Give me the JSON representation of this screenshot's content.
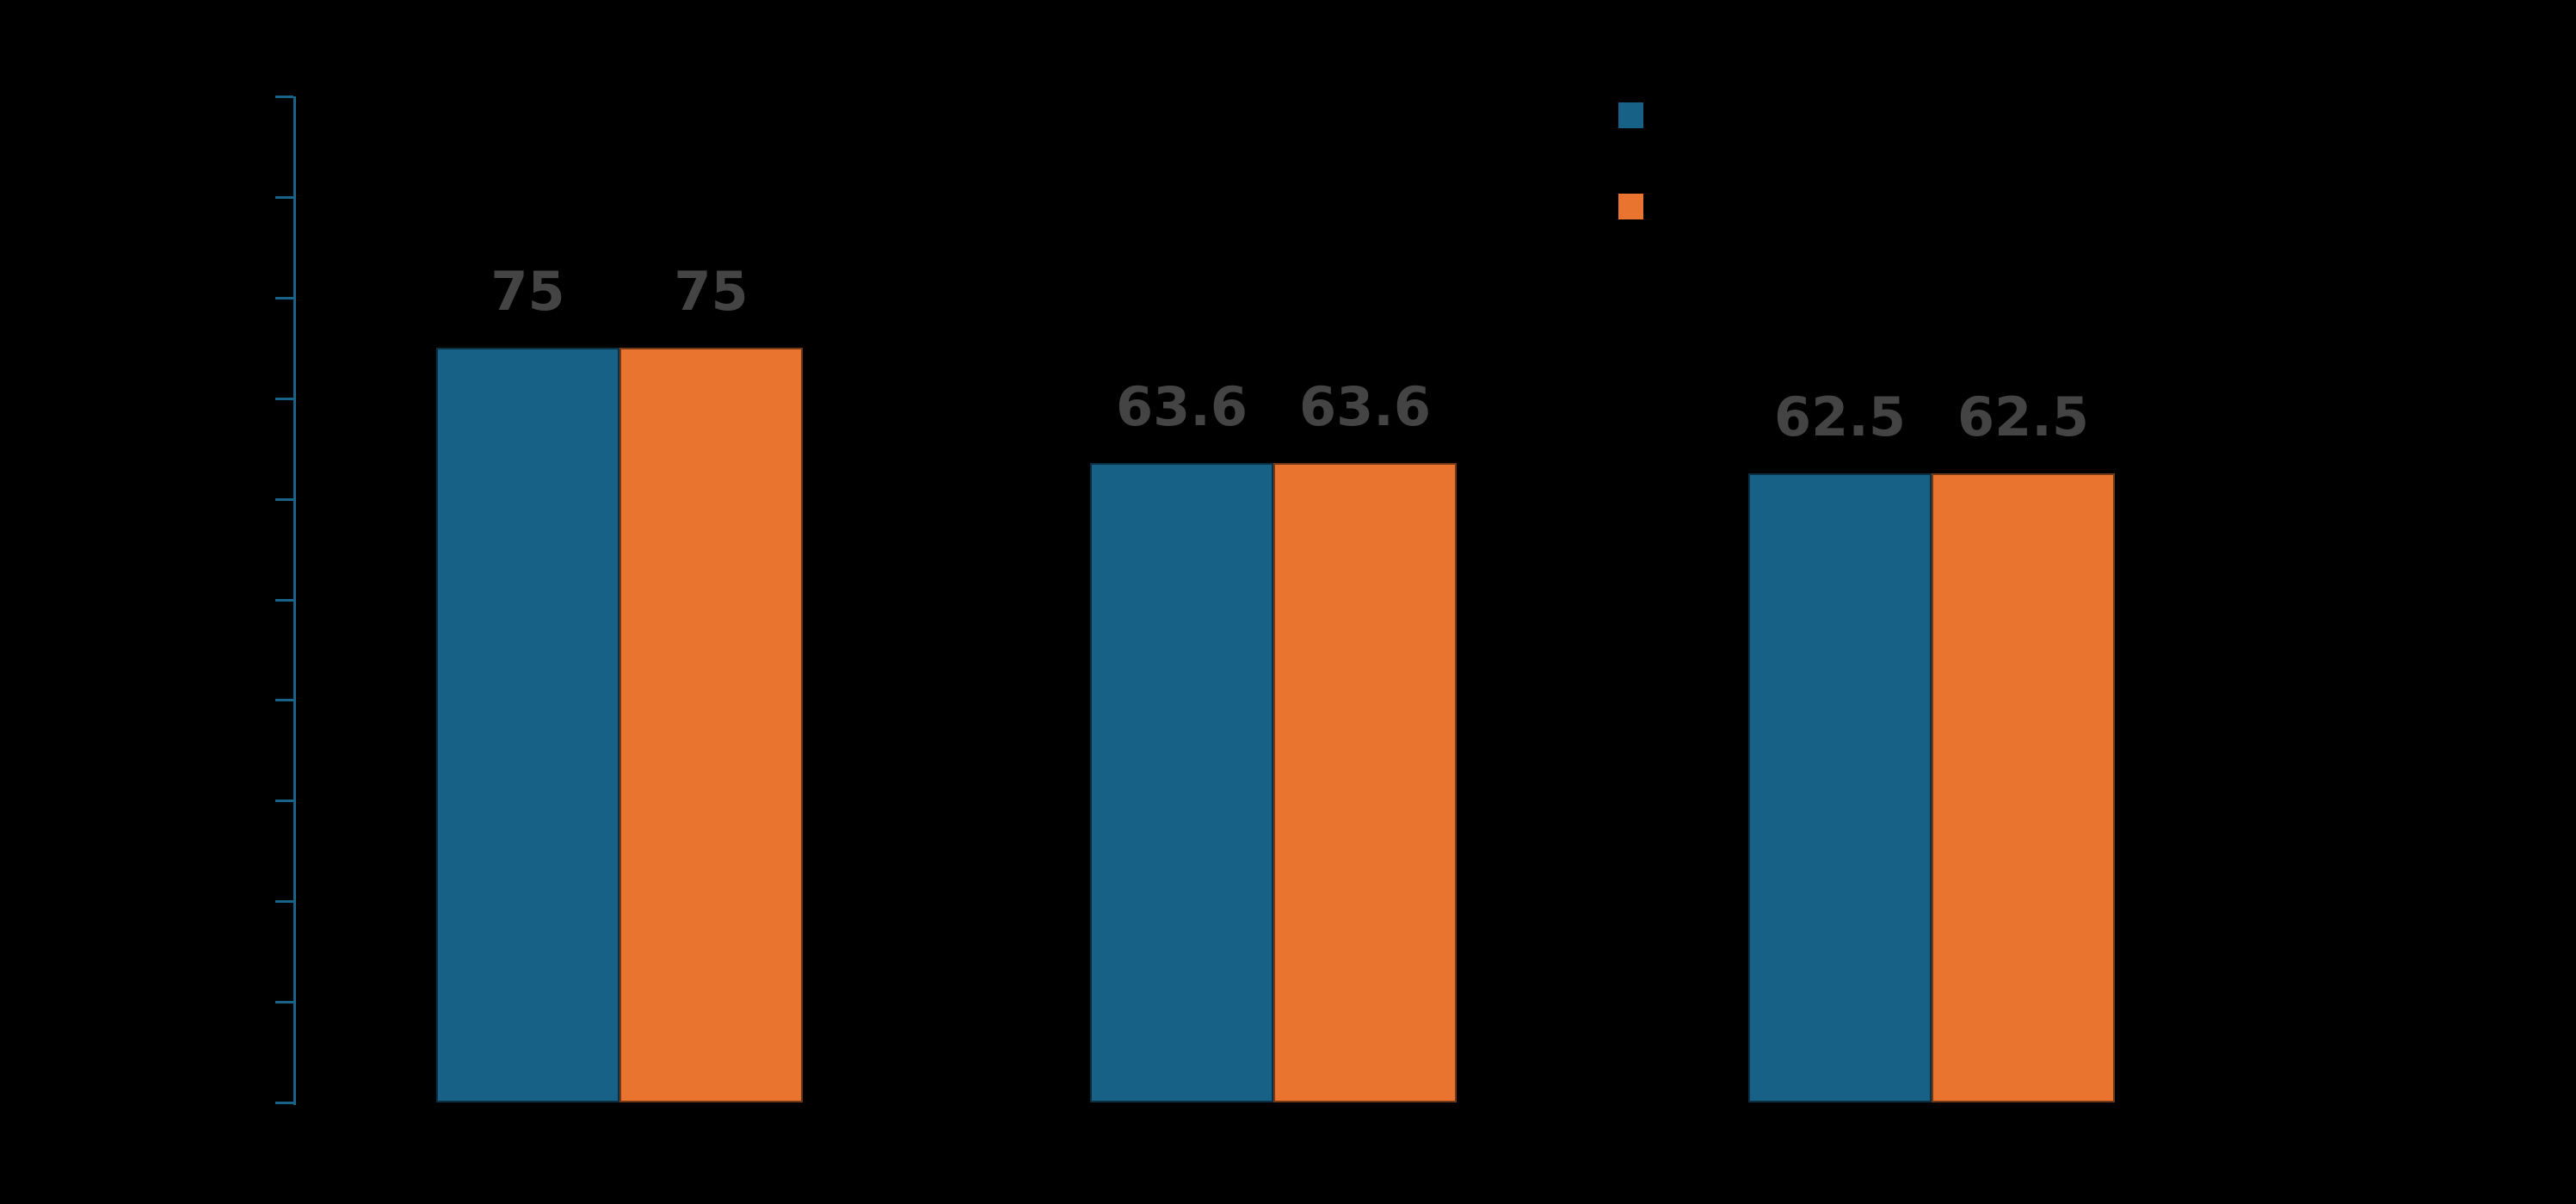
{
  "chart_data": {
    "type": "bar",
    "title": "",
    "groups": [
      {
        "values": [
          75,
          75
        ],
        "data_labels": [
          "75",
          "75"
        ]
      },
      {
        "values": [
          63.6,
          63.6
        ],
        "data_labels": [
          "63.6",
          "63.6"
        ]
      },
      {
        "values": [
          62.5,
          62.5
        ],
        "data_labels": [
          "62.5",
          "62.5"
        ]
      }
    ],
    "series_colors": [
      "#176086",
      "#E8742F"
    ],
    "ylim": [
      0,
      100
    ],
    "y_tick_count": 11,
    "grid": "off",
    "legend_position": "top-right",
    "legend_swatch_colors": [
      "#176086",
      "#E8742F"
    ],
    "notes": "Chart drawn on black background; title, axis tick labels, category labels and legend text are not visible (black-on-black). Only bars, blue y-axis with ticks, gray data labels and two legend color swatches are visible."
  },
  "colors": {
    "background": "#000000",
    "axis": "#1A6287",
    "data_label": "#444444",
    "series_blue": "#176086",
    "series_orange": "#E8742F"
  }
}
